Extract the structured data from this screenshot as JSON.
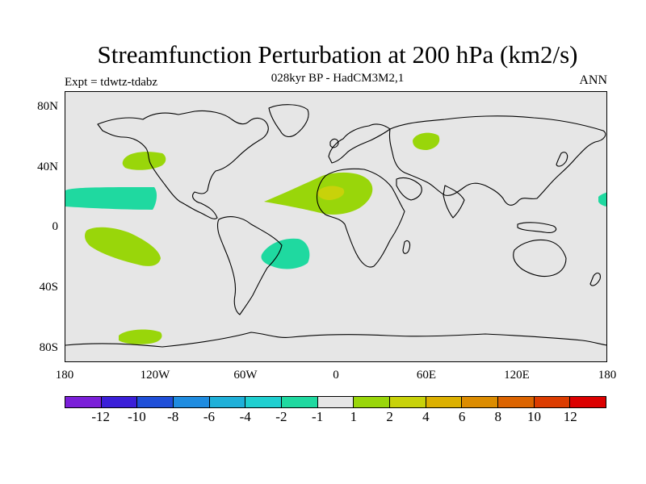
{
  "title": "Streamfunction Perturbation at 200 hPa (km2/s)",
  "subtitle": "028kyr BP - HadCM3M2,1",
  "experiment": "Expt = tdwtz-tdabz",
  "season": "ANN",
  "chart_data": {
    "type": "map",
    "projection": "cylindrical-equidistant",
    "lon_range": [
      -180,
      180
    ],
    "lat_range": [
      -90,
      90
    ],
    "x_ticks": [
      "180",
      "120W",
      "60W",
      "0",
      "60E",
      "120E",
      "180"
    ],
    "x_tick_values": [
      -180,
      -120,
      -60,
      0,
      60,
      120,
      180
    ],
    "y_ticks": [
      "80N",
      "40N",
      "0",
      "40S",
      "80S"
    ],
    "y_tick_values": [
      80,
      40,
      0,
      -40,
      -80
    ],
    "colorbar": {
      "colors": [
        "#7b1fd9",
        "#3b1fd9",
        "#1f4fd9",
        "#1f8ce0",
        "#1fb0d9",
        "#1fcfd0",
        "#1fd9a0",
        "#e6e6e6",
        "#99d60a",
        "#c8d20a",
        "#dcb000",
        "#dc8c00",
        "#dc6400",
        "#dc3c00",
        "#dc0000"
      ],
      "labels": [
        "-12",
        "-10",
        "-8",
        "-6",
        "-4",
        "-2",
        "-1",
        "1",
        "2",
        "4",
        "6",
        "8",
        "10",
        "12"
      ]
    },
    "regions": [
      {
        "name": "north-pacific-positive",
        "level": "1 to 2",
        "color": "#99d60a",
        "lon_center": -128,
        "lat_center": 45
      },
      {
        "name": "tropical-pacific-negative",
        "level": "-2 to -1",
        "color": "#1fd9a0",
        "lon_center": -157,
        "lat_center": 20
      },
      {
        "name": "south-pacific-positive",
        "level": "1 to 2",
        "color": "#99d60a",
        "lon_center": -140,
        "lat_center": -12
      },
      {
        "name": "southern-ocean-positive",
        "level": "1 to 2",
        "color": "#99d60a",
        "lon_center": -130,
        "lat_center": -73
      },
      {
        "name": "tropical-atlantic-africa-positive",
        "level": "1 to 2",
        "color": "#99d60a",
        "lon_center": 0,
        "lat_center": 18
      },
      {
        "name": "west-africa-peak",
        "level": "2 to 4",
        "color": "#c8d20a",
        "lon_center": -4,
        "lat_center": 22
      },
      {
        "name": "south-atlantic-negative",
        "level": "-2 to -1",
        "color": "#1fd9a0",
        "lon_center": -35,
        "lat_center": -15
      },
      {
        "name": "central-asia-positive",
        "level": "1 to 2",
        "color": "#99d60a",
        "lon_center": 60,
        "lat_center": 57
      },
      {
        "name": "west-pacific-negative",
        "level": "-2 to -1",
        "color": "#1fd9a0",
        "lon_center": 178,
        "lat_center": 18
      }
    ]
  }
}
